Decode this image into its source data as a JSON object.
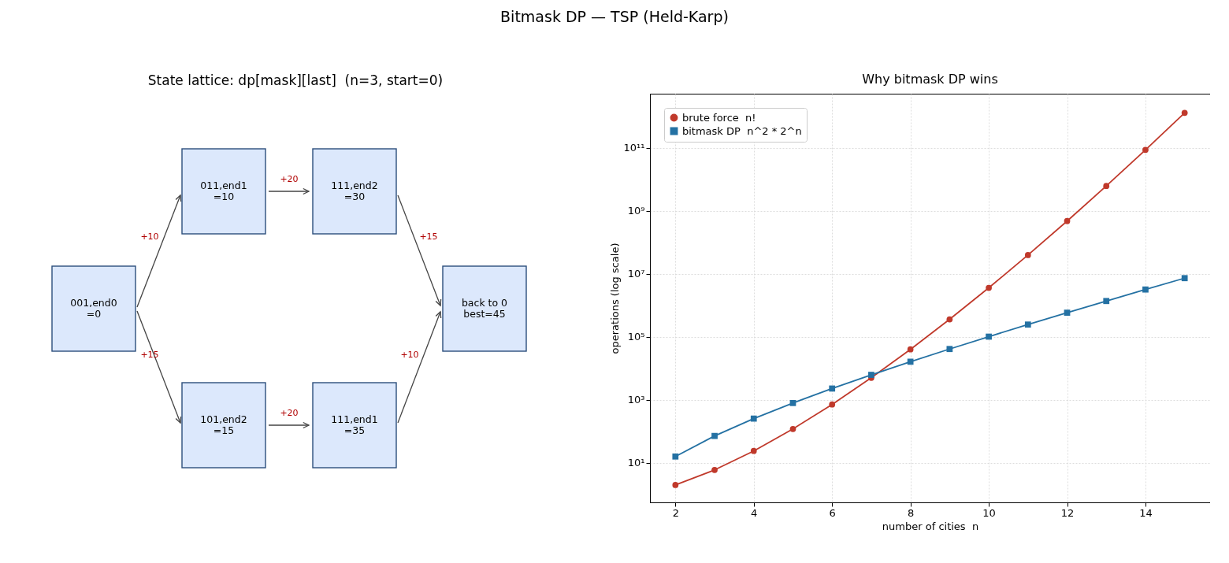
{
  "chart_data": [
    {
      "type": "other",
      "title": "State lattice: dp[mask][last]  (n=3, start=0)",
      "annotations": [
        "Bitmask DP — TSP (Held-Karp)",
        "001,end0\n=0",
        "011,end1\n=10",
        "111,end2\n=30",
        "101,end2\n=15",
        "111,end1\n=35",
        "back to 0\nbest=45",
        "+10",
        "+20",
        "+15",
        "+15",
        "+20",
        "+10"
      ]
    },
    {
      "type": "line",
      "title": "Why bitmask DP wins",
      "xlabel": "number of cities  n",
      "ylabel": "operations (log scale)",
      "log": true,
      "grid": true,
      "legend": "top left",
      "xlim": [
        1.35,
        15.65
      ],
      "xticks": [
        2,
        4,
        6,
        8,
        10,
        12,
        14
      ],
      "ylim": [
        0.56,
        5300000000000.0
      ],
      "yticks": [
        {
          "value": 10,
          "label": "10¹"
        },
        {
          "value": 1000,
          "label": "10³"
        },
        {
          "value": 100000,
          "label": "10⁵"
        },
        {
          "value": 10000000,
          "label": "10⁷"
        },
        {
          "value": 1000000000,
          "label": "10⁹"
        },
        {
          "value": 100000000000,
          "label": "10¹¹"
        }
      ],
      "x": [
        2,
        3,
        4,
        5,
        6,
        7,
        8,
        9,
        10,
        11,
        12,
        13,
        14,
        15
      ],
      "series": [
        {
          "name": "brute force  n!",
          "color": "#c0392b",
          "marker": "circle",
          "values": [
            2,
            6,
            24,
            120,
            720,
            5040,
            40320,
            362880,
            3628800,
            39916800,
            479001600,
            6227020800,
            87178291200,
            1307674368000
          ]
        },
        {
          "name": "bitmask DP  n^2 * 2^n",
          "color": "#2471a3",
          "marker": "square",
          "values": [
            16,
            72,
            256,
            800,
            2304,
            6272,
            16384,
            41472,
            102400,
            247808,
            589824,
            1384448,
            3211264,
            7372800
          ]
        }
      ]
    }
  ]
}
